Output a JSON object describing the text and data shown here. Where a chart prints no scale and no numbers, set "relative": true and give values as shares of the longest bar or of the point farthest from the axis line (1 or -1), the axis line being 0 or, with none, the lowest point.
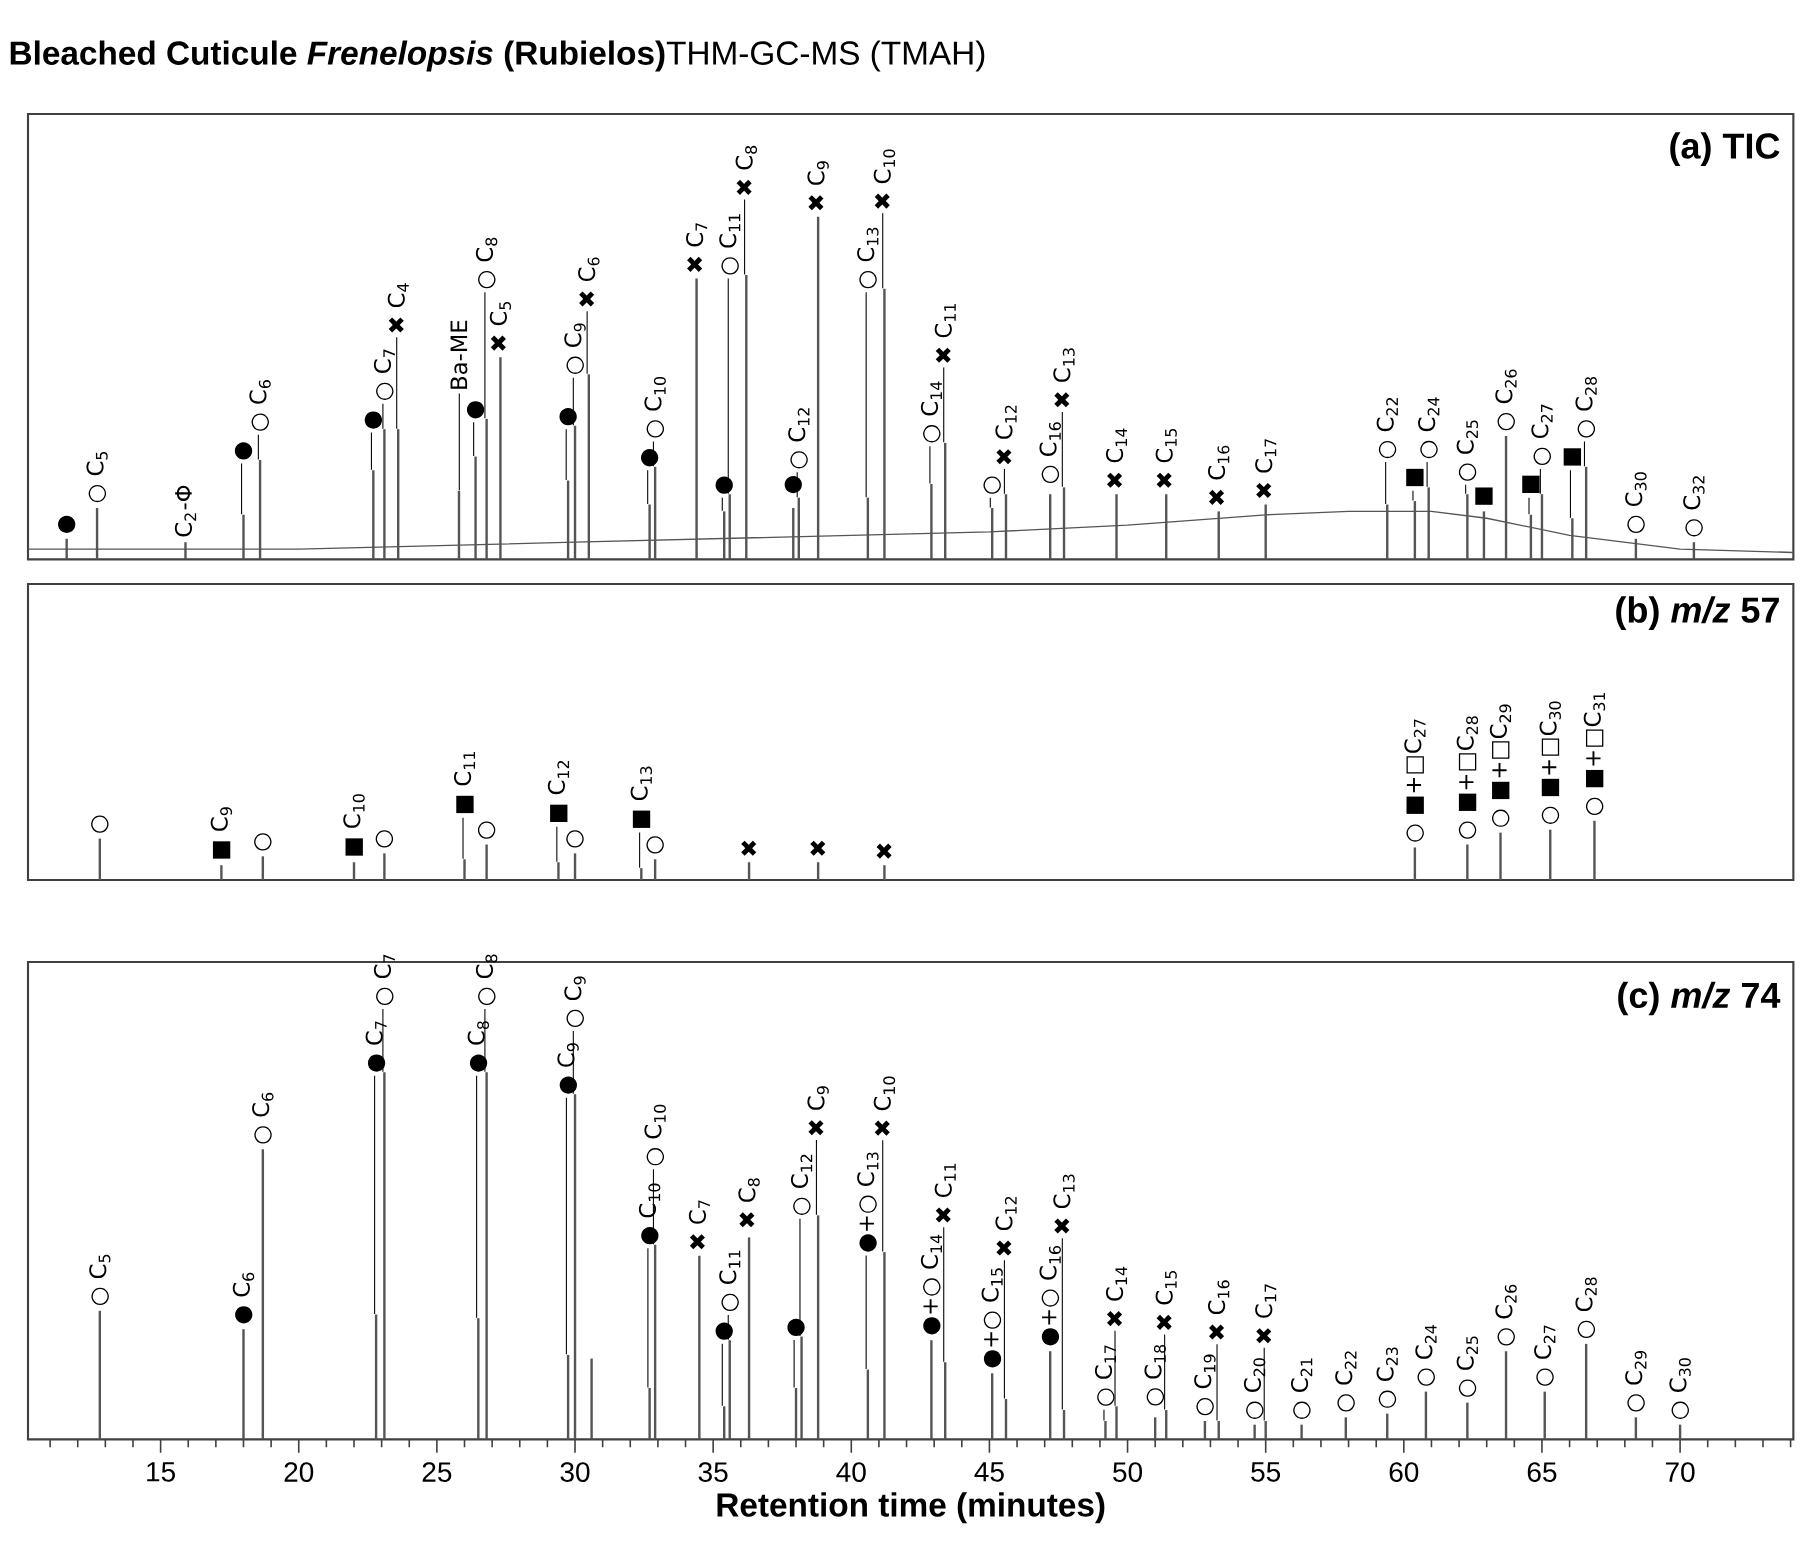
{
  "chart_data": [
    {
      "type": "bar",
      "relative": true,
      "title": "**Bleached Cuticule *Frenelopsis* (Rubielos)**THM-GC-MS (TMAH)",
      "subtitle": "(a) TIC",
      "xlim": [
        10.2,
        74.1
      ],
      "tick_labels": false,
      "x": [
        11.6,
        12.7,
        15.9,
        18.0,
        18.6,
        22.7,
        23.1,
        23.6,
        25.8,
        26.4,
        26.8,
        27.3,
        29.75,
        30.0,
        30.5,
        32.7,
        32.9,
        34.4,
        35.4,
        35.6,
        36.2,
        37.9,
        38.1,
        38.8,
        40.6,
        41.2,
        42.9,
        43.4,
        45.1,
        45.6,
        47.2,
        47.7,
        49.6,
        51.4,
        53.3,
        55.0,
        59.4,
        60.4,
        60.9,
        62.3,
        62.9,
        63.7,
        64.6,
        65.0,
        66.1,
        66.6,
        68.4,
        70.5
      ],
      "series": [
        {
          "type": "line",
          "color": "#555555",
          "x": [
            10.2,
            20,
            30,
            40,
            45,
            50,
            55,
            58,
            61,
            63,
            66,
            70,
            74.1
          ],
          "values": [
            0.03,
            0.03,
            0.05,
            0.07,
            0.08,
            0.1,
            0.13,
            0.14,
            0.14,
            0.12,
            0.07,
            0.03,
            0.02
          ]
        },
        {
          "color": "#555555",
          "values": [
            0.06,
            0.15,
            0.05,
            0.13,
            0.29,
            0.26,
            0.38,
            0.38,
            0.2,
            0.3,
            0.41,
            0.59,
            0.23,
            0.39,
            0.54,
            0.16,
            0.27,
            0.82,
            0.14,
            0.19,
            0.83,
            0.15,
            0.18,
            1.0,
            0.18,
            0.79,
            0.22,
            0.34,
            0.15,
            0.19,
            0.19,
            0.21,
            0.19,
            0.19,
            0.14,
            0.16,
            0.16,
            0.17,
            0.21,
            0.19,
            0.14,
            0.36,
            0.13,
            0.19,
            0.12,
            0.27,
            0.06,
            0.05
          ]
        }
      ],
      "annotations": [
        {
          "text": "●",
          "x": 11.6,
          "y": 0.06
        },
        {
          "text": "○ C$_{5}$",
          "x": 12.7,
          "y": 0.15
        },
        {
          "text": "C$_{2}$-Φ",
          "x": 15.9,
          "y": 0.05
        },
        {
          "text": "●",
          "x": 18.0,
          "y": 0.13
        },
        {
          "text": "○ C$_{6}$",
          "x": 18.6,
          "y": 0.29
        },
        {
          "text": "●",
          "x": 22.7,
          "y": 0.26
        },
        {
          "text": "○ C$_{7}$",
          "x": 23.1,
          "y": 0.38
        },
        {
          "text": "✖ C$_{4}$",
          "x": 23.6,
          "y": 0.38
        },
        {
          "text": "Ba-ME",
          "x": 25.8,
          "y": 0.2
        },
        {
          "text": "●",
          "x": 26.4,
          "y": 0.3
        },
        {
          "text": "○ C$_{8}$",
          "x": 26.8,
          "y": 0.41
        },
        {
          "text": "✖ C$_{5}$",
          "x": 27.3,
          "y": 0.59
        },
        {
          "text": "●",
          "x": 29.75,
          "y": 0.23
        },
        {
          "text": "○ C$_{9}$",
          "x": 30.0,
          "y": 0.39
        },
        {
          "text": "✖ C$_{6}$",
          "x": 30.5,
          "y": 0.54
        },
        {
          "text": "●",
          "x": 32.7,
          "y": 0.16
        },
        {
          "text": "○ C$_{10}$",
          "x": 32.9,
          "y": 0.27
        },
        {
          "text": "✖ C$_{7}$",
          "x": 34.4,
          "y": 0.82
        },
        {
          "text": "●",
          "x": 35.4,
          "y": 0.14
        },
        {
          "text": "○ C$_{11}$",
          "x": 35.6,
          "y": 0.19
        },
        {
          "text": "✖ C$_{8}$",
          "x": 36.2,
          "y": 0.83
        },
        {
          "text": "●",
          "x": 37.9,
          "y": 0.15
        },
        {
          "text": "○ C$_{12}$",
          "x": 38.1,
          "y": 0.18
        },
        {
          "text": "✖ C$_{9}$",
          "x": 38.8,
          "y": 1.0
        },
        {
          "text": "○ C$_{13}$",
          "x": 40.6,
          "y": 0.18
        },
        {
          "text": "✖ C$_{10}$",
          "x": 41.2,
          "y": 0.79
        },
        {
          "text": "○ C$_{14}$",
          "x": 42.9,
          "y": 0.22
        },
        {
          "text": "✖ C$_{11}$",
          "x": 43.4,
          "y": 0.34
        },
        {
          "text": "○",
          "x": 45.1,
          "y": 0.15
        },
        {
          "text": "✖ C$_{12}$",
          "x": 45.6,
          "y": 0.19
        },
        {
          "text": "○ C$_{16}$",
          "x": 47.2,
          "y": 0.19
        },
        {
          "text": "✖ C$_{13}$",
          "x": 47.7,
          "y": 0.21
        },
        {
          "text": "✖ C$_{14}$",
          "x": 49.6,
          "y": 0.19
        },
        {
          "text": "✖ C$_{15}$",
          "x": 51.4,
          "y": 0.19
        },
        {
          "text": "✖ C$_{16}$",
          "x": 53.3,
          "y": 0.14
        },
        {
          "text": "✖ C$_{17}$",
          "x": 55.0,
          "y": 0.16
        },
        {
          "text": "○ C$_{22}$",
          "x": 59.4,
          "y": 0.16
        },
        {
          "text": "■",
          "x": 60.4,
          "y": 0.17
        },
        {
          "text": "○ C$_{24}$",
          "x": 60.9,
          "y": 0.21
        },
        {
          "text": "○ C$_{25}$",
          "x": 62.3,
          "y": 0.19
        },
        {
          "text": "■",
          "x": 62.9,
          "y": 0.14
        },
        {
          "text": "○ C$_{26}$",
          "x": 63.7,
          "y": 0.36
        },
        {
          "text": "■",
          "x": 64.6,
          "y": 0.13
        },
        {
          "text": "○ C$_{27}$",
          "x": 65.0,
          "y": 0.19
        },
        {
          "text": "■",
          "x": 66.1,
          "y": 0.12
        },
        {
          "text": "○ C$_{28}$",
          "x": 66.6,
          "y": 0.27
        },
        {
          "text": "○ C$_{30}$",
          "x": 68.4,
          "y": 0.06
        },
        {
          "text": "○ C$_{32}$",
          "x": 70.5,
          "y": 0.05
        }
      ]
    },
    {
      "type": "bar",
      "relative": true,
      "title": "(b) *m/z* 57",
      "xlim": [
        10.2,
        74.1
      ],
      "tick_labels": false,
      "x": [
        12.8,
        17.2,
        18.7,
        22.0,
        23.1,
        26.0,
        26.8,
        29.4,
        30.0,
        32.4,
        32.9,
        36.3,
        38.8,
        41.2,
        60.4,
        62.3,
        63.5,
        65.3,
        66.9
      ],
      "series": [
        {
          "color": "#555555",
          "values": [
            0.7,
            0.25,
            0.4,
            0.3,
            0.45,
            0.35,
            0.6,
            0.3,
            0.45,
            0.2,
            0.35,
            0.3,
            0.3,
            0.25,
            0.55,
            0.6,
            0.8,
            0.85,
            1.0
          ]
        }
      ],
      "annotations": [
        {
          "text": "○",
          "x": 12.8,
          "y": 0.7
        },
        {
          "text": "■ C$_{9}$",
          "x": 17.2,
          "y": 0.25
        },
        {
          "text": "○",
          "x": 18.7,
          "y": 0.4
        },
        {
          "text": "■ C$_{10}$",
          "x": 22.0,
          "y": 0.3
        },
        {
          "text": "○",
          "x": 23.1,
          "y": 0.45
        },
        {
          "text": "■ C$_{11}$",
          "x": 26.0,
          "y": 0.35
        },
        {
          "text": "○",
          "x": 26.8,
          "y": 0.6
        },
        {
          "text": "■ C$_{12}$",
          "x": 29.4,
          "y": 0.3
        },
        {
          "text": "○",
          "x": 30.0,
          "y": 0.45
        },
        {
          "text": "■ C$_{13}$",
          "x": 32.4,
          "y": 0.2
        },
        {
          "text": "○",
          "x": 32.9,
          "y": 0.35
        },
        {
          "text": "✖",
          "x": 36.3,
          "y": 0.3
        },
        {
          "text": "✖",
          "x": 38.8,
          "y": 0.3
        },
        {
          "text": "✖",
          "x": 41.2,
          "y": 0.25
        },
        {
          "text": "○ ■+□C$_{27}$",
          "x": 60.4,
          "y": 0.55
        },
        {
          "text": "○ ■+□C$_{28}$",
          "x": 62.3,
          "y": 0.6
        },
        {
          "text": "○ ■+□C$_{29}$",
          "x": 63.5,
          "y": 0.8
        },
        {
          "text": "○ ■+□C$_{30}$",
          "x": 65.3,
          "y": 0.85
        },
        {
          "text": "○ ■+□C$_{31}$",
          "x": 66.9,
          "y": 1.0
        }
      ]
    },
    {
      "type": "bar",
      "relative": true,
      "title": "(c) *m/z* 74",
      "xlabel": "Retention time (minutes)",
      "xlim": [
        10.2,
        74.1
      ],
      "tick_labels": "x",
      "xticks": [
        {
          "value": 11,
          "label": null
        },
        {
          "value": 12,
          "label": null
        },
        {
          "value": 13,
          "label": null
        },
        {
          "value": 14,
          "label": null
        },
        15,
        {
          "value": 16,
          "label": null
        },
        {
          "value": 17,
          "label": null
        },
        {
          "value": 18,
          "label": null
        },
        {
          "value": 19,
          "label": null
        },
        20,
        {
          "value": 21,
          "label": null
        },
        {
          "value": 22,
          "label": null
        },
        {
          "value": 23,
          "label": null
        },
        {
          "value": 24,
          "label": null
        },
        25,
        {
          "value": 26,
          "label": null
        },
        {
          "value": 27,
          "label": null
        },
        {
          "value": 28,
          "label": null
        },
        {
          "value": 29,
          "label": null
        },
        30,
        {
          "value": 31,
          "label": null
        },
        {
          "value": 32,
          "label": null
        },
        {
          "value": 33,
          "label": null
        },
        {
          "value": 34,
          "label": null
        },
        35,
        {
          "value": 36,
          "label": null
        },
        {
          "value": 37,
          "label": null
        },
        {
          "value": 38,
          "label": null
        },
        {
          "value": 39,
          "label": null
        },
        40,
        {
          "value": 41,
          "label": null
        },
        {
          "value": 42,
          "label": null
        },
        {
          "value": 43,
          "label": null
        },
        {
          "value": 44,
          "label": null
        },
        45,
        {
          "value": 46,
          "label": null
        },
        {
          "value": 47,
          "label": null
        },
        {
          "value": 48,
          "label": null
        },
        {
          "value": 49,
          "label": null
        },
        50,
        {
          "value": 51,
          "label": null
        },
        {
          "value": 52,
          "label": null
        },
        {
          "value": 53,
          "label": null
        },
        {
          "value": 54,
          "label": null
        },
        55,
        {
          "value": 56,
          "label": null
        },
        {
          "value": 57,
          "label": null
        },
        {
          "value": 58,
          "label": null
        },
        {
          "value": 59,
          "label": null
        },
        60,
        {
          "value": 61,
          "label": null
        },
        {
          "value": 62,
          "label": null
        },
        {
          "value": 63,
          "label": null
        },
        {
          "value": 64,
          "label": null
        },
        65,
        {
          "value": 66,
          "label": null
        },
        {
          "value": 67,
          "label": null
        },
        {
          "value": 68,
          "label": null
        },
        {
          "value": 69,
          "label": null
        },
        70,
        {
          "value": 71,
          "label": null
        },
        {
          "value": 72,
          "label": null
        },
        {
          "value": 73,
          "label": null
        },
        {
          "value": 74,
          "label": null
        }
      ],
      "x": [
        12.8,
        18.0,
        18.7,
        22.8,
        23.1,
        26.5,
        26.8,
        29.75,
        30.0,
        30.6,
        32.7,
        32.9,
        34.5,
        35.4,
        35.6,
        36.3,
        38.0,
        38.2,
        38.8,
        40.6,
        41.2,
        42.9,
        43.4,
        45.1,
        45.6,
        47.2,
        47.7,
        49.2,
        49.6,
        51.0,
        51.4,
        52.8,
        53.3,
        54.6,
        55.0,
        56.3,
        57.9,
        59.4,
        60.8,
        62.3,
        63.7,
        65.1,
        66.6,
        68.4,
        70.0
      ],
      "series": [
        {
          "color": "#555555",
          "values": [
            0.35,
            0.3,
            0.79,
            0.34,
            1.0,
            0.33,
            1.0,
            0.23,
            0.94,
            0.22,
            0.14,
            0.53,
            0.5,
            0.09,
            0.27,
            0.55,
            0.14,
            0.28,
            0.61,
            0.19,
            0.51,
            0.27,
            0.21,
            0.18,
            0.11,
            0.24,
            0.08,
            0.05,
            0.09,
            0.06,
            0.08,
            0.05,
            0.05,
            0.04,
            0.05,
            0.04,
            0.06,
            0.07,
            0.13,
            0.1,
            0.24,
            0.13,
            0.26,
            0.06,
            0.04
          ]
        }
      ],
      "annotations": [
        {
          "text": "○ C$_{5}$",
          "x": 12.8,
          "y": 0.35
        },
        {
          "text": "● C$_{6}$",
          "x": 18.0,
          "y": 0.3
        },
        {
          "text": "○ C$_{6}$",
          "x": 18.7,
          "y": 0.79
        },
        {
          "text": "● C$_{7}$",
          "x": 22.8,
          "y": 0.34
        },
        {
          "text": "○ C$_{7}$",
          "x": 23.1,
          "y": 1.0
        },
        {
          "text": "● C$_{8}$",
          "x": 26.5,
          "y": 0.33
        },
        {
          "text": "○ C$_{8}$",
          "x": 26.8,
          "y": 1.0
        },
        {
          "text": "● C$_{9}$",
          "x": 29.75,
          "y": 0.23
        },
        {
          "text": "○ C$_{9}$",
          "x": 30.0,
          "y": 0.94
        },
        {
          "text": "● C$_{10}$",
          "x": 32.7,
          "y": 0.14
        },
        {
          "text": "○ C$_{10}$",
          "x": 32.9,
          "y": 0.53
        },
        {
          "text": "✖ C$_{7}$",
          "x": 34.5,
          "y": 0.5
        },
        {
          "text": "●",
          "x": 35.4,
          "y": 0.09
        },
        {
          "text": "○ C$_{11}$",
          "x": 35.6,
          "y": 0.27
        },
        {
          "text": "✖ C$_{8}$",
          "x": 36.3,
          "y": 0.55
        },
        {
          "text": "●",
          "x": 38.0,
          "y": 0.14
        },
        {
          "text": "○ C$_{12}$",
          "x": 38.2,
          "y": 0.28
        },
        {
          "text": "✖ C$_{9}$",
          "x": 38.8,
          "y": 0.61
        },
        {
          "text": "●+○ C$_{13}$",
          "x": 40.6,
          "y": 0.19
        },
        {
          "text": "✖ C$_{10}$",
          "x": 41.2,
          "y": 0.51
        },
        {
          "text": "●+○ C$_{14}$",
          "x": 42.9,
          "y": 0.27
        },
        {
          "text": "✖ C$_{11}$",
          "x": 43.4,
          "y": 0.21
        },
        {
          "text": "●+○ C$_{15}$",
          "x": 45.1,
          "y": 0.18
        },
        {
          "text": "✖ C$_{12}$",
          "x": 45.6,
          "y": 0.11
        },
        {
          "text": "●+○ C$_{16}$",
          "x": 47.2,
          "y": 0.24
        },
        {
          "text": "✖ C$_{13}$",
          "x": 47.7,
          "y": 0.08
        },
        {
          "text": "○ C$_{17}$",
          "x": 49.2,
          "y": 0.05
        },
        {
          "text": "✖ C$_{14}$",
          "x": 49.6,
          "y": 0.09
        },
        {
          "text": "○ C$_{18}$",
          "x": 51.0,
          "y": 0.06
        },
        {
          "text": "✖ C$_{15}$",
          "x": 51.4,
          "y": 0.08
        },
        {
          "text": "○ C$_{19}$",
          "x": 52.8,
          "y": 0.05
        },
        {
          "text": "✖ C$_{16}$",
          "x": 53.3,
          "y": 0.05
        },
        {
          "text": "○ C$_{20}$",
          "x": 54.6,
          "y": 0.04
        },
        {
          "text": "✖ C$_{17}$",
          "x": 55.0,
          "y": 0.05
        },
        {
          "text": "○ C$_{21}$",
          "x": 56.3,
          "y": 0.04
        },
        {
          "text": "○ C$_{22}$",
          "x": 57.9,
          "y": 0.06
        },
        {
          "text": "○ C$_{23}$",
          "x": 59.4,
          "y": 0.07
        },
        {
          "text": "○ C$_{24}$",
          "x": 60.8,
          "y": 0.13
        },
        {
          "text": "○ C$_{25}$",
          "x": 62.3,
          "y": 0.1
        },
        {
          "text": "○ C$_{26}$",
          "x": 63.7,
          "y": 0.24
        },
        {
          "text": "○ C$_{27}$",
          "x": 65.1,
          "y": 0.13
        },
        {
          "text": "○ C$_{28}$",
          "x": 66.6,
          "y": 0.26
        },
        {
          "text": "○ C$_{29}$",
          "x": 68.4,
          "y": 0.06
        },
        {
          "text": "○ C$_{30}$",
          "x": 70.0,
          "y": 0.04
        }
      ]
    }
  ]
}
